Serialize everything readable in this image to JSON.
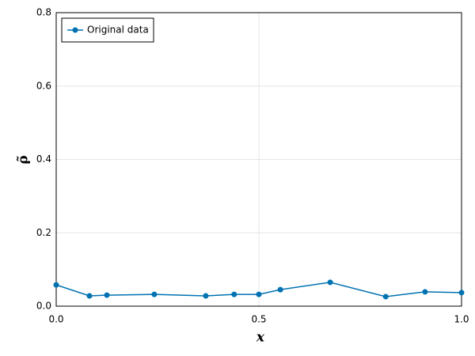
{
  "chart_data": {
    "type": "line",
    "x_label": "x",
    "y_label": "ρ̃",
    "x": [
      0,
      0.082,
      0.125,
      0.242,
      0.369,
      0.439,
      0.5,
      0.553,
      0.676,
      0.813,
      0.91,
      1.0
    ],
    "series": [
      {
        "name": "Original data",
        "color": "#0072b2",
        "values": [
          0.058,
          0.028,
          0.03,
          0.032,
          0.028,
          0.032,
          0.032,
          0.045,
          0.065,
          0.026,
          0.039,
          0.037
        ]
      }
    ],
    "xlim": [
      0,
      1
    ],
    "ylim": [
      0,
      0.8
    ],
    "xticks": [
      {
        "value": 0,
        "label": "0.0"
      },
      0.5,
      {
        "value": 1,
        "label": "1.0"
      }
    ],
    "yticks": [
      {
        "value": 0,
        "label": "0.0"
      },
      0.2,
      0.4,
      0.6,
      0.8
    ],
    "grid": true,
    "legend": "top-left",
    "markers": true
  }
}
